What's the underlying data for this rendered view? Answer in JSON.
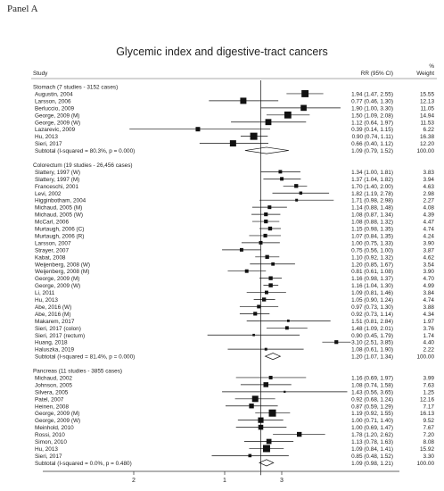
{
  "panel_label": "Panel A",
  "chart_data": {
    "type": "forest",
    "title": "Glycemic index and digestive-tract cancers",
    "columns": {
      "study": "Study",
      "rr": "RR (95% CI)",
      "weight_top": "%",
      "weight": "Weight"
    },
    "x_ticks": [
      "2",
      "1",
      "3"
    ],
    "groups": [
      {
        "header": "Stomach (7 studies - 3152 cases)",
        "studies": [
          {
            "label": "Augustin, 2004",
            "rr": 1.94,
            "lo": 1.47,
            "hi": 2.55,
            "ci": "1.94 (1.47, 2.55)",
            "weight": "15.55"
          },
          {
            "label": "Larsson, 2006",
            "rr": 0.77,
            "lo": 0.46,
            "hi": 1.3,
            "ci": "0.77 (0.46, 1.30)",
            "weight": "12.13"
          },
          {
            "label": "Berluccio, 2009",
            "rr": 1.9,
            "lo": 1.0,
            "hi": 3.3,
            "ci": "1.90 (1.00, 3.30)",
            "weight": "11.05"
          },
          {
            "label": "George, 2009 (M)",
            "rr": 1.5,
            "lo": 1.09,
            "hi": 2.08,
            "ci": "1.50 (1.09, 2.08)",
            "weight": "14.94"
          },
          {
            "label": "George, 2009 (W)",
            "rr": 1.12,
            "lo": 0.64,
            "hi": 1.97,
            "ci": "1.12 (0.64, 1.97)",
            "weight": "11.53"
          },
          {
            "label": "Lazarevic, 2009",
            "rr": 0.39,
            "lo": 0.14,
            "hi": 1.15,
            "ci": "0.39 (0.14, 1.15)",
            "weight": "6.22"
          },
          {
            "label": "Hu, 2013",
            "rr": 0.9,
            "lo": 0.74,
            "hi": 1.11,
            "ci": "0.90 (0.74, 1.11)",
            "weight": "16.38"
          },
          {
            "label": "Sieri, 2017",
            "rr": 0.66,
            "lo": 0.4,
            "hi": 1.12,
            "ci": "0.66 (0.40, 1.12)",
            "weight": "12.20"
          }
        ],
        "subtotal": {
          "label": "Subtotal  (I-squared = 80.3%, p = 0.000)",
          "rr": 1.09,
          "lo": 0.79,
          "hi": 1.52,
          "ci": "1.09 (0.79, 1.52)",
          "weight": "100.00"
        }
      },
      {
        "header": "Colorectum (19 studies - 26,456 cases)",
        "studies": [
          {
            "label": "Slattery, 1997 (W)",
            "rr": 1.34,
            "lo": 1.0,
            "hi": 1.81,
            "ci": "1.34 (1.00, 1.81)",
            "weight": "3.83"
          },
          {
            "label": "Slattery, 1997 (M)",
            "rr": 1.37,
            "lo": 1.04,
            "hi": 1.82,
            "ci": "1.37 (1.04, 1.82)",
            "weight": "3.94"
          },
          {
            "label": "Franceschi, 2001",
            "rr": 1.7,
            "lo": 1.4,
            "hi": 2.0,
            "ci": "1.70 (1.40, 2.00)",
            "weight": "4.63"
          },
          {
            "label": "Levi, 2002",
            "rr": 1.82,
            "lo": 1.19,
            "hi": 2.78,
            "ci": "1.82 (1.19, 2.78)",
            "weight": "2.98"
          },
          {
            "label": "Higginbotham, 2004",
            "rr": 1.71,
            "lo": 0.98,
            "hi": 2.98,
            "ci": "1.71 (0.98, 2.98)",
            "weight": "2.27"
          },
          {
            "label": "Michaud, 2005 (M)",
            "rr": 1.14,
            "lo": 0.88,
            "hi": 1.48,
            "ci": "1.14 (0.88, 1.48)",
            "weight": "4.08"
          },
          {
            "label": "Michaud, 2005 (W)",
            "rr": 1.08,
            "lo": 0.87,
            "hi": 1.34,
            "ci": "1.08 (0.87, 1.34)",
            "weight": "4.39"
          },
          {
            "label": "McCarl, 2006",
            "rr": 1.08,
            "lo": 0.88,
            "hi": 1.32,
            "ci": "1.08 (0.88, 1.32)",
            "weight": "4.47"
          },
          {
            "label": "Murtaugh, 2006 (C)",
            "rr": 1.15,
            "lo": 0.98,
            "hi": 1.35,
            "ci": "1.15 (0.98, 1.35)",
            "weight": "4.74"
          },
          {
            "label": "Murtaugh, 2006 (R)",
            "rr": 1.07,
            "lo": 0.84,
            "hi": 1.35,
            "ci": "1.07 (0.84, 1.35)",
            "weight": "4.24"
          },
          {
            "label": "Larsson, 2007",
            "rr": 1.0,
            "lo": 0.75,
            "hi": 1.33,
            "ci": "1.00 (0.75, 1.33)",
            "weight": "3.90"
          },
          {
            "label": "Strayer, 2007",
            "rr": 0.75,
            "lo": 0.56,
            "hi": 1.0,
            "ci": "0.75 (0.56, 1.00)",
            "weight": "3.87"
          },
          {
            "label": "Kabat, 2008",
            "rr": 1.1,
            "lo": 0.92,
            "hi": 1.32,
            "ci": "1.10 (0.92, 1.32)",
            "weight": "4.62"
          },
          {
            "label": "Weijenberg, 2008 (W)",
            "rr": 1.2,
            "lo": 0.85,
            "hi": 1.67,
            "ci": "1.20 (0.85, 1.67)",
            "weight": "3.54"
          },
          {
            "label": "Weijenberg, 2008 (M)",
            "rr": 0.81,
            "lo": 0.61,
            "hi": 1.08,
            "ci": "0.81 (0.61, 1.08)",
            "weight": "3.90"
          },
          {
            "label": "George, 2009 (M)",
            "rr": 1.16,
            "lo": 0.98,
            "hi": 1.37,
            "ci": "1.16 (0.98, 1.37)",
            "weight": "4.70"
          },
          {
            "label": "George, 2009 (W)",
            "rr": 1.16,
            "lo": 1.04,
            "hi": 1.3,
            "ci": "1.16 (1.04, 1.30)",
            "weight": "4.99"
          },
          {
            "label": "Li, 2011",
            "rr": 1.09,
            "lo": 0.81,
            "hi": 1.46,
            "ci": "1.09 (0.81, 1.46)",
            "weight": "3.84"
          },
          {
            "label": "Hu, 2013",
            "rr": 1.05,
            "lo": 0.9,
            "hi": 1.24,
            "ci": "1.05 (0.90, 1.24)",
            "weight": "4.74"
          },
          {
            "label": "Abe, 2016 (W)",
            "rr": 0.97,
            "lo": 0.73,
            "hi": 1.3,
            "ci": "0.97 (0.73, 1.30)",
            "weight": "3.88"
          },
          {
            "label": "Abe, 2016 (M)",
            "rr": 0.92,
            "lo": 0.73,
            "hi": 1.14,
            "ci": "0.92 (0.73, 1.14)",
            "weight": "4.34"
          },
          {
            "label": "Makarem, 2017",
            "rr": 1.51,
            "lo": 0.81,
            "hi": 2.84,
            "ci": "1.51 (0.81, 2.84)",
            "weight": "1.97"
          },
          {
            "label": "Sieri, 2017 (colon)",
            "rr": 1.48,
            "lo": 1.09,
            "hi": 2.01,
            "ci": "1.48 (1.09, 2.01)",
            "weight": "3.76"
          },
          {
            "label": "Sieri, 2017 (rectum)",
            "rr": 0.9,
            "lo": 0.45,
            "hi": 1.79,
            "ci": "0.90 (0.45, 1.79)",
            "weight": "1.74"
          },
          {
            "label": "Huang, 2018",
            "rr": 3.1,
            "lo": 2.51,
            "hi": 3.85,
            "ci": "3.10 (2.51, 3.85)",
            "weight": "4.40"
          },
          {
            "label": "Haluszka, 2019",
            "rr": 1.08,
            "lo": 0.61,
            "hi": 1.9,
            "ci": "1.08 (0.61, 1.90)",
            "weight": "2.22"
          }
        ],
        "subtotal": {
          "label": "Subtotal  (I-squared = 81.4%, p = 0.000)",
          "rr": 1.2,
          "lo": 1.07,
          "hi": 1.34,
          "ci": "1.20 (1.07, 1.34)",
          "weight": "100.00"
        }
      },
      {
        "header": "Pancreas (11 studies - 3855 cases)",
        "studies": [
          {
            "label": "Michaud, 2002",
            "rr": 1.16,
            "lo": 0.69,
            "hi": 1.97,
            "ci": "1.16 (0.69, 1.97)",
            "weight": "3.99"
          },
          {
            "label": "Johnson, 2005",
            "rr": 1.08,
            "lo": 0.74,
            "hi": 1.58,
            "ci": "1.08 (0.74, 1.58)",
            "weight": "7.63"
          },
          {
            "label": "Silvera, 2005",
            "rr": 1.43,
            "lo": 0.56,
            "hi": 3.65,
            "ci": "1.43 (0.56, 3.65)",
            "weight": "1.25"
          },
          {
            "label": "Patel, 2007",
            "rr": 0.92,
            "lo": 0.68,
            "hi": 1.24,
            "ci": "0.92 (0.68, 1.24)",
            "weight": "12.16"
          },
          {
            "label": "Heinen, 2008",
            "rr": 0.87,
            "lo": 0.59,
            "hi": 1.29,
            "ci": "0.87 (0.59, 1.29)",
            "weight": "7.17"
          },
          {
            "label": "George, 2009 (M)",
            "rr": 1.19,
            "lo": 0.92,
            "hi": 1.55,
            "ci": "1.19 (0.92, 1.55)",
            "weight": "16.13"
          },
          {
            "label": "George, 2009 (W)",
            "rr": 1.0,
            "lo": 0.71,
            "hi": 1.4,
            "ci": "1.00 (0.71, 1.40)",
            "weight": "9.52"
          },
          {
            "label": "Meinhold, 2010",
            "rr": 1.0,
            "lo": 0.69,
            "hi": 1.47,
            "ci": "1.00 (0.69, 1.47)",
            "weight": "7.67"
          },
          {
            "label": "Rossi, 2010",
            "rr": 1.78,
            "lo": 1.2,
            "hi": 2.62,
            "ci": "1.78 (1.20, 2.62)",
            "weight": "7.20"
          },
          {
            "label": "Simon, 2010",
            "rr": 1.13,
            "lo": 0.78,
            "hi": 1.63,
            "ci": "1.13 (0.78, 1.63)",
            "weight": "8.08"
          },
          {
            "label": "Hu, 2013",
            "rr": 1.09,
            "lo": 0.84,
            "hi": 1.41,
            "ci": "1.09 (0.84, 1.41)",
            "weight": "15.92"
          },
          {
            "label": "Sieri, 2017",
            "rr": 0.85,
            "lo": 0.48,
            "hi": 1.52,
            "ci": "0.85 (0.48, 1.52)",
            "weight": "3.30"
          }
        ],
        "subtotal": {
          "label": "Subtotal  (I-squared = 0.0%, p = 0.480)",
          "rr": 1.09,
          "lo": 0.98,
          "hi": 1.21,
          "ci": "1.09 (0.98, 1.21)",
          "weight": "100.00"
        }
      }
    ]
  }
}
